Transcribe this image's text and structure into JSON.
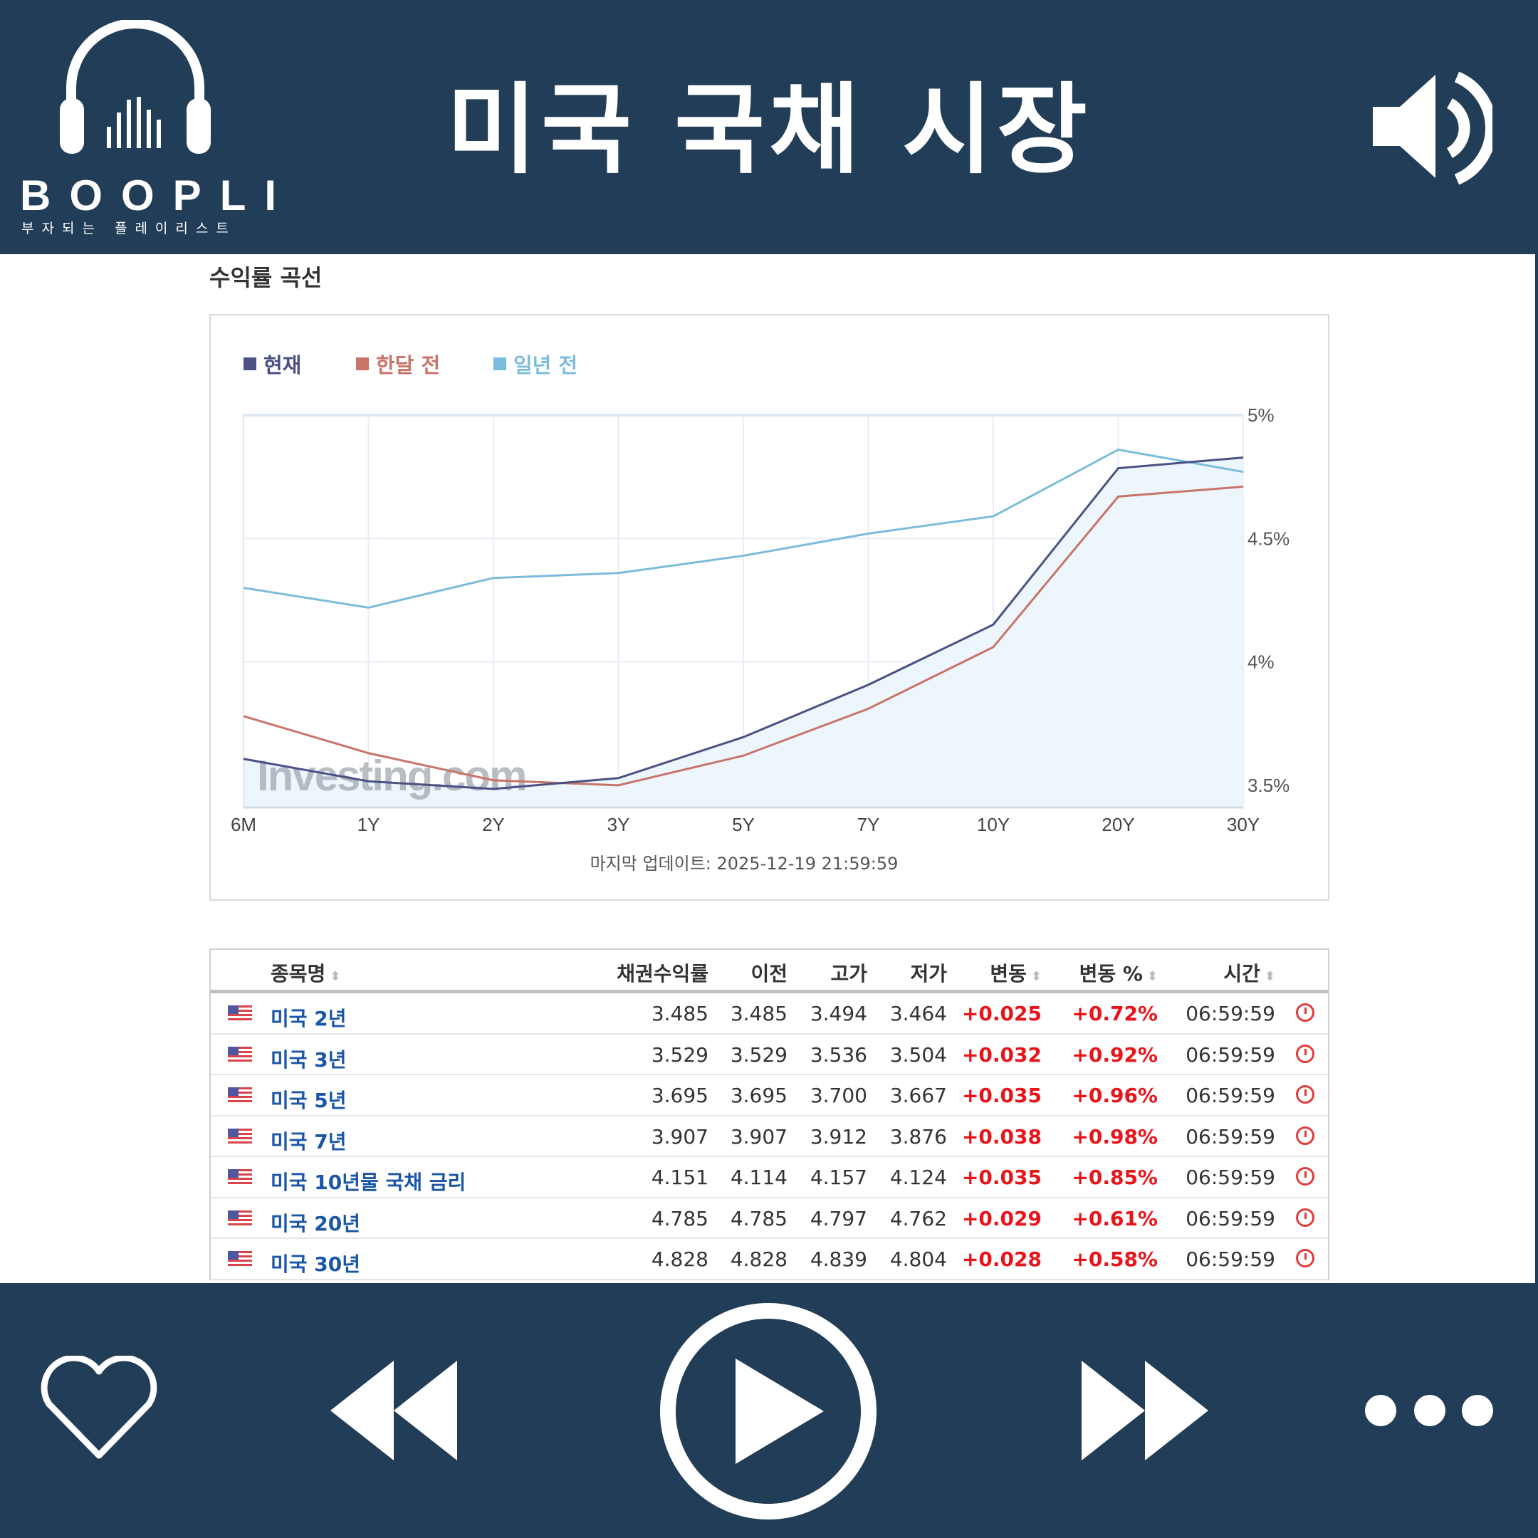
{
  "header": {
    "title": "미국 국채 시장",
    "brand": "BOOPLI",
    "brand_sub": "부자되는 플레이리스트",
    "volume_icon": "speaker-icon",
    "logo_icon": "headphones-icon"
  },
  "section_title": "수익률 곡선",
  "chart_data": {
    "type": "line",
    "categories": [
      "6M",
      "1Y",
      "2Y",
      "3Y",
      "5Y",
      "7Y",
      "10Y",
      "20Y",
      "30Y"
    ],
    "series": [
      {
        "name": "현재",
        "color": "#4b5085",
        "values": [
          3.607,
          3.516,
          3.485,
          3.529,
          3.695,
          3.907,
          4.151,
          4.785,
          4.828
        ]
      },
      {
        "name": "한달 전",
        "color": "#c87468",
        "values": [
          3.78,
          3.63,
          3.52,
          3.5,
          3.62,
          3.81,
          4.06,
          4.67,
          4.71
        ]
      },
      {
        "name": "일년 전",
        "color": "#7bbcdc",
        "values": [
          4.3,
          4.22,
          4.34,
          4.36,
          4.43,
          4.52,
          4.59,
          4.86,
          4.77
        ]
      }
    ],
    "yticks": [
      "3.5%",
      "4%",
      "4.5%",
      "5%"
    ],
    "ytick_values": [
      3.5,
      4,
      4.5,
      5
    ],
    "ylim": [
      3.41,
      5.0
    ],
    "grid": true,
    "legend": "top-left",
    "y_axis_side": "right",
    "area_fill_series": "현재",
    "watermark": "Investing.com",
    "update": "마지막 업데이트: 2025-12-19 21:59:59"
  },
  "table": {
    "headers": [
      "종목명",
      "채권수익률",
      "이전",
      "고가",
      "저가",
      "변동",
      "변동 %",
      "시간"
    ],
    "rows": [
      [
        "미국 2년",
        "3.485",
        "3.485",
        "3.494",
        "3.464",
        "+0.025",
        "+0.72%",
        "06:59:59"
      ],
      [
        "미국 3년",
        "3.529",
        "3.529",
        "3.536",
        "3.504",
        "+0.032",
        "+0.92%",
        "06:59:59"
      ],
      [
        "미국 5년",
        "3.695",
        "3.695",
        "3.700",
        "3.667",
        "+0.035",
        "+0.96%",
        "06:59:59"
      ],
      [
        "미국 7년",
        "3.907",
        "3.907",
        "3.912",
        "3.876",
        "+0.038",
        "+0.98%",
        "06:59:59"
      ],
      [
        "미국 10년물 국채 금리",
        "4.151",
        "4.114",
        "4.157",
        "4.124",
        "+0.035",
        "+0.85%",
        "06:59:59"
      ],
      [
        "미국 20년",
        "4.785",
        "4.785",
        "4.797",
        "4.762",
        "+0.029",
        "+0.61%",
        "06:59:59"
      ],
      [
        "미국 30년",
        "4.828",
        "4.828",
        "4.839",
        "4.804",
        "+0.028",
        "+0.58%",
        "06:59:59"
      ]
    ],
    "positive_color": "#e8141a",
    "link_color": "#1a56a7"
  },
  "footer": {
    "icons": [
      "heart-icon",
      "rewind-icon",
      "play-icon",
      "fast-forward-icon",
      "more-icon"
    ]
  }
}
